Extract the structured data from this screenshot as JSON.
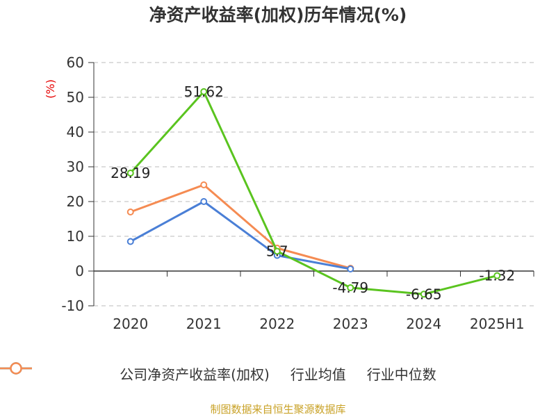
{
  "title": "净资产收益率(加权)历年情况(%)",
  "unit_label": "(%)",
  "source": "制图数据来自恒生聚源数据库",
  "colors": {
    "company": "#5ac41f",
    "industry_avg": "#4a7fd6",
    "industry_median": "#f58b52",
    "grid": "#bbbbbb",
    "axis": "#333333"
  },
  "chart_data": {
    "type": "line",
    "title": "净资产收益率(加权)历年情况(%)",
    "ylabel": "(%)",
    "xlabel": "",
    "categories": [
      "2020",
      "2021",
      "2022",
      "2023",
      "2024",
      "2025H1"
    ],
    "ylim": [
      -10,
      60
    ],
    "yticks": [
      60,
      50,
      40,
      30,
      20,
      10,
      0,
      -10
    ],
    "grid": true,
    "legend_position": "bottom",
    "series": [
      {
        "name": "公司净资产收益率(加权)",
        "color_key": "company",
        "values": [
          28.19,
          51.62,
          5.7,
          -4.79,
          -6.65,
          -1.32
        ],
        "labels": [
          "28.19",
          "51.62",
          "5.7",
          "-4.79",
          "-6.65",
          "-1.32"
        ]
      },
      {
        "name": "行业均值",
        "color_key": "industry_avg",
        "values": [
          8.5,
          20.0,
          4.5,
          0.6,
          null,
          null
        ]
      },
      {
        "name": "行业中位数",
        "color_key": "industry_median",
        "values": [
          17.0,
          24.8,
          6.6,
          0.8,
          null,
          null
        ]
      }
    ]
  }
}
